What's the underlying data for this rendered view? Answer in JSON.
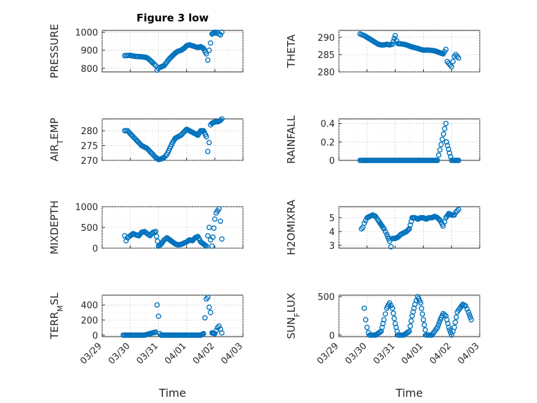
{
  "figure": {
    "title": "Figure 3 low"
  },
  "colors": {
    "marker": "#0072BD",
    "axis": "#262626"
  },
  "x_ticks": [
    "03/29",
    "03/30",
    "03/31",
    "04/01",
    "04/02",
    "04/03"
  ],
  "x_label": "Time",
  "chart_data": [
    {
      "type": "scatter",
      "id": "pressure",
      "ylabel": "PRESSURE",
      "ylim": [
        780,
        1010
      ],
      "yticks": [
        800,
        900,
        1000
      ],
      "grid": true,
      "points": [
        [
          0.8,
          870
        ],
        [
          0.9,
          871
        ],
        [
          1.0,
          872
        ],
        [
          1.1,
          868
        ],
        [
          1.2,
          866
        ],
        [
          1.3,
          865
        ],
        [
          1.4,
          864
        ],
        [
          1.5,
          862
        ],
        [
          1.6,
          858
        ],
        [
          1.7,
          845
        ],
        [
          1.8,
          830
        ],
        [
          1.9,
          815
        ],
        [
          1.95,
          790
        ],
        [
          2.0,
          800
        ],
        [
          2.05,
          805
        ],
        [
          2.1,
          808
        ],
        [
          2.2,
          815
        ],
        [
          2.3,
          835
        ],
        [
          2.4,
          855
        ],
        [
          2.5,
          870
        ],
        [
          2.6,
          885
        ],
        [
          2.7,
          895
        ],
        [
          2.8,
          900
        ],
        [
          2.9,
          910
        ],
        [
          3.0,
          925
        ],
        [
          3.1,
          930
        ],
        [
          3.2,
          925
        ],
        [
          3.3,
          920
        ],
        [
          3.4,
          915
        ],
        [
          3.5,
          920
        ],
        [
          3.6,
          910
        ],
        [
          3.7,
          880
        ],
        [
          3.75,
          845
        ],
        [
          3.8,
          900
        ],
        [
          3.85,
          940
        ],
        [
          3.9,
          990
        ],
        [
          4.0,
          1000
        ],
        [
          4.05,
          995
        ],
        [
          4.1,
          1000
        ],
        [
          4.15,
          990
        ],
        [
          4.2,
          985
        ],
        [
          4.25,
          1000
        ]
      ]
    },
    {
      "type": "scatter",
      "id": "theta",
      "ylabel": "THETA",
      "ylim": [
        280,
        292
      ],
      "yticks": [
        280,
        285,
        290
      ],
      "grid": true,
      "points": [
        [
          0.75,
          291
        ],
        [
          0.8,
          290.8
        ],
        [
          0.9,
          290.5
        ],
        [
          1.0,
          290
        ],
        [
          1.1,
          289.5
        ],
        [
          1.2,
          289
        ],
        [
          1.3,
          288.5
        ],
        [
          1.4,
          288
        ],
        [
          1.5,
          287.8
        ],
        [
          1.6,
          287.8
        ],
        [
          1.7,
          288
        ],
        [
          1.8,
          287.8
        ],
        [
          1.9,
          288
        ],
        [
          2.0,
          290.5
        ],
        [
          2.05,
          289
        ],
        [
          2.1,
          288.2
        ],
        [
          2.2,
          288.1
        ],
        [
          2.3,
          288
        ],
        [
          2.4,
          287.8
        ],
        [
          2.5,
          287.5
        ],
        [
          2.6,
          287.2
        ],
        [
          2.7,
          287
        ],
        [
          2.8,
          286.8
        ],
        [
          2.9,
          286.5
        ],
        [
          3.0,
          286.3
        ],
        [
          3.1,
          286.3
        ],
        [
          3.2,
          286.3
        ],
        [
          3.3,
          286.2
        ],
        [
          3.4,
          286.1
        ],
        [
          3.5,
          285.8
        ],
        [
          3.6,
          285.5
        ],
        [
          3.7,
          285.2
        ],
        [
          3.8,
          286.5
        ],
        [
          3.85,
          283
        ],
        [
          3.9,
          282.5
        ],
        [
          3.95,
          282
        ],
        [
          4.0,
          281.5
        ],
        [
          4.05,
          283
        ],
        [
          4.1,
          284.5
        ],
        [
          4.15,
          285
        ],
        [
          4.2,
          284.5
        ],
        [
          4.25,
          284
        ]
      ]
    },
    {
      "type": "scatter",
      "id": "air_temp",
      "ylabel": "AIR_TEMP",
      "ylim": [
        270,
        284
      ],
      "yticks": [
        270,
        275,
        280
      ],
      "grid": true,
      "points": [
        [
          0.8,
          280
        ],
        [
          0.9,
          280
        ],
        [
          1.0,
          279
        ],
        [
          1.1,
          278
        ],
        [
          1.2,
          277
        ],
        [
          1.3,
          276
        ],
        [
          1.4,
          275
        ],
        [
          1.5,
          274.5
        ],
        [
          1.6,
          274
        ],
        [
          1.7,
          273
        ],
        [
          1.8,
          272
        ],
        [
          1.9,
          271
        ],
        [
          2.0,
          270.3
        ],
        [
          2.1,
          270.5
        ],
        [
          2.2,
          271
        ],
        [
          2.3,
          272
        ],
        [
          2.4,
          274
        ],
        [
          2.5,
          276
        ],
        [
          2.6,
          277.5
        ],
        [
          2.7,
          278
        ],
        [
          2.8,
          278.5
        ],
        [
          2.9,
          279.5
        ],
        [
          3.0,
          280.5
        ],
        [
          3.1,
          280
        ],
        [
          3.2,
          279.5
        ],
        [
          3.3,
          279
        ],
        [
          3.4,
          278.5
        ],
        [
          3.5,
          280
        ],
        [
          3.6,
          280
        ],
        [
          3.7,
          278
        ],
        [
          3.75,
          273
        ],
        [
          3.8,
          276
        ],
        [
          3.85,
          282
        ],
        [
          3.9,
          282.5
        ],
        [
          4.0,
          283
        ],
        [
          4.1,
          283
        ],
        [
          4.2,
          283.5
        ],
        [
          4.25,
          284
        ]
      ]
    },
    {
      "type": "scatter",
      "id": "rainfall",
      "ylabel": "RAINFALL",
      "ylim": [
        0,
        0.45
      ],
      "yticks": [
        0,
        0.2,
        0.4
      ],
      "grid": true,
      "points": [
        [
          0.75,
          0
        ],
        [
          1.0,
          0
        ],
        [
          1.5,
          0
        ],
        [
          2.0,
          0
        ],
        [
          2.5,
          0
        ],
        [
          3.0,
          0
        ],
        [
          3.5,
          0
        ],
        [
          3.8,
          0.4
        ],
        [
          3.82,
          0.2
        ],
        [
          4.0,
          0
        ],
        [
          4.25,
          0
        ]
      ]
    },
    {
      "type": "scatter",
      "id": "mixdepth",
      "ylabel": "MIXDEPTH",
      "ylim": [
        0,
        1000
      ],
      "yticks": [
        0,
        500,
        1000
      ],
      "grid": true,
      "points": [
        [
          0.8,
          300
        ],
        [
          0.85,
          180
        ],
        [
          0.9,
          250
        ],
        [
          1.0,
          300
        ],
        [
          1.1,
          350
        ],
        [
          1.2,
          320
        ],
        [
          1.3,
          300
        ],
        [
          1.4,
          380
        ],
        [
          1.5,
          400
        ],
        [
          1.6,
          350
        ],
        [
          1.7,
          300
        ],
        [
          1.8,
          380
        ],
        [
          1.9,
          400
        ],
        [
          2.0,
          50
        ],
        [
          2.1,
          100
        ],
        [
          2.2,
          200
        ],
        [
          2.3,
          250
        ],
        [
          2.4,
          200
        ],
        [
          2.5,
          150
        ],
        [
          2.6,
          100
        ],
        [
          2.7,
          80
        ],
        [
          2.8,
          90
        ],
        [
          2.9,
          120
        ],
        [
          3.0,
          150
        ],
        [
          3.1,
          200
        ],
        [
          3.2,
          180
        ],
        [
          3.3,
          250
        ],
        [
          3.4,
          280
        ],
        [
          3.5,
          150
        ],
        [
          3.6,
          100
        ],
        [
          3.7,
          50
        ],
        [
          3.75,
          300
        ],
        [
          3.8,
          500
        ],
        [
          3.85,
          200
        ],
        [
          3.9,
          50
        ],
        [
          4.0,
          700
        ],
        [
          4.05,
          850
        ],
        [
          4.1,
          900
        ],
        [
          4.15,
          950
        ],
        [
          4.2,
          650
        ],
        [
          4.25,
          220
        ]
      ]
    },
    {
      "type": "scatter",
      "id": "h2omixra",
      "ylabel": "H2OMIXRA",
      "ylim": [
        2.8,
        5.8
      ],
      "yticks": [
        3,
        4,
        5
      ],
      "grid": true,
      "points": [
        [
          0.8,
          4.2
        ],
        [
          0.85,
          4.3
        ],
        [
          0.9,
          4.6
        ],
        [
          1.0,
          5.0
        ],
        [
          1.1,
          5.1
        ],
        [
          1.2,
          5.2
        ],
        [
          1.3,
          5.1
        ],
        [
          1.4,
          4.8
        ],
        [
          1.5,
          4.5
        ],
        [
          1.6,
          4.2
        ],
        [
          1.7,
          3.8
        ],
        [
          1.8,
          3.3
        ],
        [
          1.85,
          2.9
        ],
        [
          1.9,
          3.5
        ],
        [
          2.0,
          3.5
        ],
        [
          2.1,
          3.6
        ],
        [
          2.2,
          3.8
        ],
        [
          2.3,
          3.9
        ],
        [
          2.4,
          4.0
        ],
        [
          2.5,
          4.2
        ],
        [
          2.6,
          5.0
        ],
        [
          2.7,
          5.0
        ],
        [
          2.8,
          4.9
        ],
        [
          2.9,
          5.0
        ],
        [
          3.0,
          5.0
        ],
        [
          3.1,
          4.9
        ],
        [
          3.2,
          5.0
        ],
        [
          3.3,
          5.0
        ],
        [
          3.4,
          5.1
        ],
        [
          3.5,
          5.0
        ],
        [
          3.6,
          4.8
        ],
        [
          3.7,
          4.4
        ],
        [
          3.75,
          4.7
        ],
        [
          3.8,
          5.0
        ],
        [
          3.9,
          5.3
        ],
        [
          4.0,
          5.2
        ],
        [
          4.1,
          5.2
        ],
        [
          4.15,
          5.4
        ],
        [
          4.2,
          5.5
        ],
        [
          4.25,
          5.6
        ]
      ]
    },
    {
      "type": "scatter",
      "id": "terr_msl",
      "ylabel": "TERR_MSL",
      "ylim": [
        -20,
        530
      ],
      "yticks": [
        0,
        200,
        400
      ],
      "grid": true,
      "points": [
        [
          0.75,
          0
        ],
        [
          1.0,
          0
        ],
        [
          1.5,
          0
        ],
        [
          1.9,
          40
        ],
        [
          1.95,
          400
        ],
        [
          2.0,
          250
        ],
        [
          2.05,
          20
        ],
        [
          2.1,
          0
        ],
        [
          2.5,
          0
        ],
        [
          3.0,
          0
        ],
        [
          3.5,
          0
        ],
        [
          3.6,
          20
        ],
        [
          3.65,
          230
        ],
        [
          3.7,
          480
        ],
        [
          3.75,
          500
        ],
        [
          3.8,
          370
        ],
        [
          3.85,
          300
        ],
        [
          3.9,
          30
        ],
        [
          4.0,
          20
        ],
        [
          4.05,
          60
        ],
        [
          4.1,
          100
        ],
        [
          4.15,
          120
        ],
        [
          4.2,
          80
        ],
        [
          4.25,
          30
        ]
      ]
    },
    {
      "type": "scatter",
      "id": "sunflux",
      "ylabel": "SUN_FLUX",
      "ylim": [
        -20,
        520
      ],
      "yticks": [
        0,
        500
      ],
      "grid": true,
      "points": [
        [
          0.9,
          350
        ],
        [
          0.95,
          200
        ],
        [
          1.0,
          100
        ],
        [
          1.05,
          30
        ],
        [
          1.1,
          0
        ],
        [
          1.3,
          0
        ],
        [
          1.5,
          50
        ],
        [
          1.6,
          200
        ],
        [
          1.7,
          350
        ],
        [
          1.8,
          420
        ],
        [
          1.9,
          350
        ],
        [
          2.0,
          150
        ],
        [
          2.1,
          0
        ],
        [
          2.3,
          0
        ],
        [
          2.5,
          50
        ],
        [
          2.6,
          250
        ],
        [
          2.7,
          400
        ],
        [
          2.8,
          500
        ],
        [
          2.9,
          420
        ],
        [
          3.0,
          200
        ],
        [
          3.1,
          0
        ],
        [
          3.3,
          0
        ],
        [
          3.5,
          100
        ],
        [
          3.6,
          200
        ],
        [
          3.7,
          280
        ],
        [
          3.8,
          250
        ],
        [
          3.9,
          100
        ],
        [
          4.0,
          0
        ],
        [
          4.1,
          100
        ],
        [
          4.2,
          300
        ],
        [
          4.3,
          350
        ],
        [
          4.4,
          400
        ],
        [
          4.5,
          380
        ],
        [
          4.6,
          300
        ],
        [
          4.7,
          200
        ]
      ]
    }
  ]
}
